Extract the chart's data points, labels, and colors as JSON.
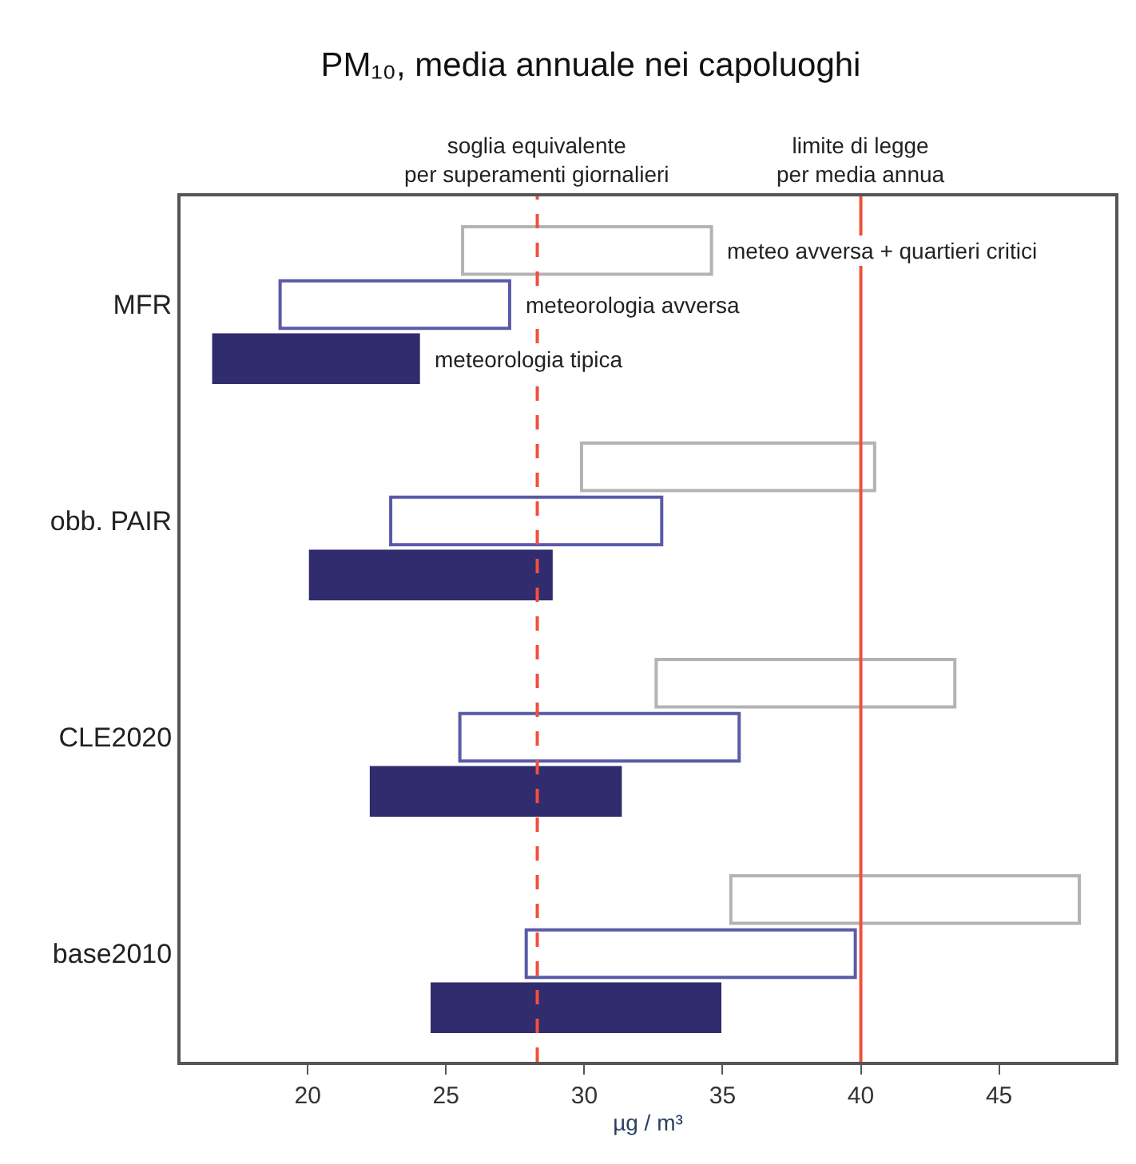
{
  "chart_data": {
    "type": "bar",
    "orientation": "horizontal",
    "title": "PM₁₀, media annuale nei capoluoghi",
    "xlabel": "µg / m³",
    "categories": [
      "MFR",
      "obb. PAIR",
      "CLE2020",
      "base2010"
    ],
    "series": [
      {
        "name": "meteo avversa + quartieri critici",
        "color": "#b3b3b3",
        "base": [
          25.6,
          29.9,
          32.6,
          35.3
        ],
        "values": [
          9.0,
          10.6,
          10.8,
          12.6
        ]
      },
      {
        "name": "meteorologia avversa",
        "color": "#5a5aa8",
        "base": [
          19.0,
          23.0,
          25.5,
          27.9
        ],
        "values": [
          8.3,
          9.8,
          10.1,
          11.9
        ]
      },
      {
        "name": "meteorologia tipica",
        "color": "#312c6e",
        "base": [
          16.6,
          20.1,
          22.3,
          24.5
        ],
        "values": [
          7.4,
          8.7,
          9.0,
          10.4
        ]
      }
    ],
    "xlim": [
      15.4,
      49.2
    ],
    "xticks": [
      20,
      25,
      30,
      35,
      40,
      45
    ],
    "ref_lines": [
      {
        "axis": "x",
        "value": 28.3,
        "label": "soglia equivalente\nper superamenti giornalieri",
        "color": "#f0503c",
        "line_style": "dashed"
      },
      {
        "axis": "x",
        "value": 40,
        "label": "limite di legge\nper media annua",
        "color": "#f0503c",
        "line_style": "solid"
      }
    ],
    "legend": false
  }
}
